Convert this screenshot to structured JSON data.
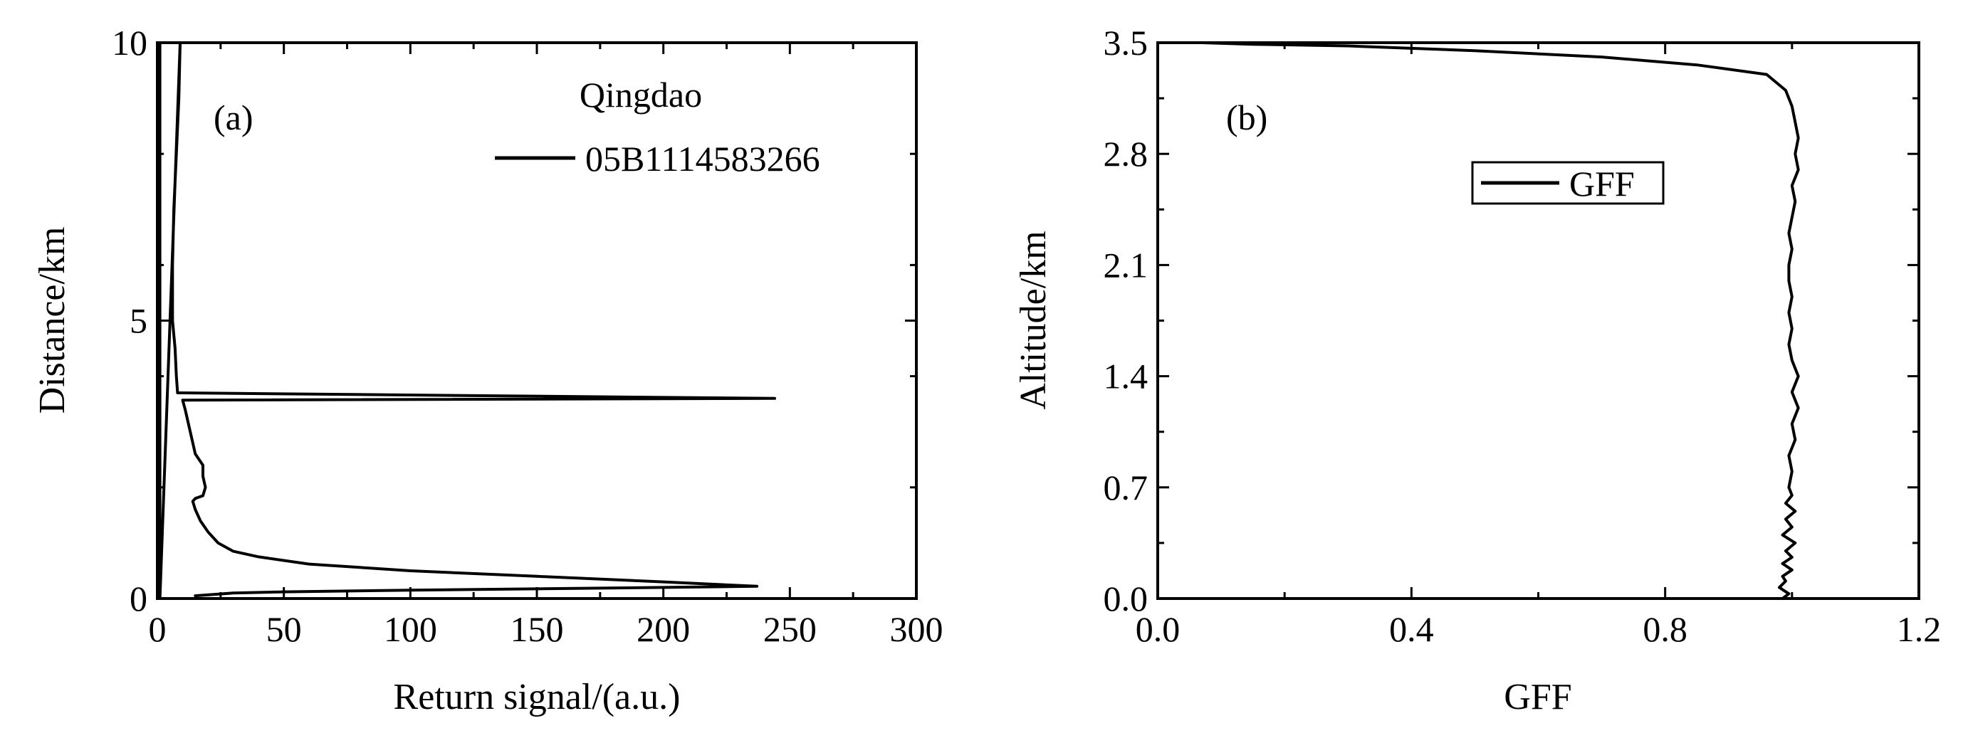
{
  "chart_data": [
    {
      "panel_label": "(a)",
      "type": "line",
      "xlabel": "Return signal/(a.u.)",
      "ylabel": "Distance/km",
      "xlim": [
        0,
        300
      ],
      "ylim": [
        0,
        10
      ],
      "xticks": [
        0,
        50,
        100,
        150,
        200,
        250,
        300
      ],
      "xtick_labels": [
        "0",
        "50",
        "100",
        "150",
        "200",
        "250",
        "300"
      ],
      "yticks": [
        0,
        5,
        10
      ],
      "ytick_labels": [
        "0",
        "5",
        "10"
      ],
      "y_minor_ticks": [
        2,
        4,
        6,
        8
      ],
      "grid": false,
      "legend": {
        "placement": "top-right",
        "title": "Qingdao",
        "entries": [
          "05B1114583266"
        ]
      },
      "series": [
        {
          "name": "05B1114583266",
          "color": "#000000",
          "points": [
            [
              1,
              10
            ],
            [
              1,
              0
            ],
            [
              9,
              10
            ],
            [
              8.5,
              9
            ],
            [
              7.5,
              8
            ],
            [
              6.5,
              7
            ],
            [
              6,
              6
            ],
            [
              6,
              5
            ],
            [
              7,
              4.5
            ],
            [
              7.5,
              4
            ],
            [
              8,
              3.7
            ],
            [
              244,
              3.6
            ],
            [
              10,
              3.57
            ],
            [
              11,
              3.4
            ],
            [
              13,
              3.0
            ],
            [
              15,
              2.6
            ],
            [
              18,
              2.4
            ],
            [
              18,
              2.2
            ],
            [
              19,
              2.0
            ],
            [
              18,
              1.85
            ],
            [
              15,
              1.8
            ],
            [
              14,
              1.75
            ],
            [
              15,
              1.6
            ],
            [
              17,
              1.4
            ],
            [
              20,
              1.2
            ],
            [
              24,
              1.0
            ],
            [
              30,
              0.85
            ],
            [
              40,
              0.75
            ],
            [
              60,
              0.62
            ],
            [
              100,
              0.5
            ],
            [
              150,
              0.4
            ],
            [
              200,
              0.3
            ],
            [
              237,
              0.22
            ],
            [
              200,
              0.2
            ],
            [
              100,
              0.15
            ],
            [
              50,
              0.12
            ],
            [
              30,
              0.1
            ],
            [
              15,
              0.05
            ]
          ]
        }
      ]
    },
    {
      "panel_label": "(b)",
      "type": "line",
      "xlabel": "GFF",
      "ylabel": "Altitude/km",
      "xlim": [
        0,
        1.2
      ],
      "ylim": [
        0,
        3.5
      ],
      "xticks": [
        0,
        0.4,
        0.8,
        1.2
      ],
      "xtick_labels": [
        "0.0",
        "0.4",
        "0.8",
        "1.2"
      ],
      "yticks": [
        0,
        0.7,
        1.4,
        2.1,
        2.8,
        3.5
      ],
      "ytick_labels": [
        "0.0",
        "0.7",
        "1.4",
        "2.1",
        "2.8",
        "3.5"
      ],
      "grid": false,
      "legend": {
        "placement": "upper-center",
        "entries": [
          "GFF"
        ]
      },
      "series": [
        {
          "name": "GFF",
          "color": "#000000",
          "points": [
            [
              0.985,
              0.0
            ],
            [
              0.995,
              0.03
            ],
            [
              0.98,
              0.07
            ],
            [
              0.99,
              0.11
            ],
            [
              0.985,
              0.14
            ],
            [
              1.0,
              0.18
            ],
            [
              0.985,
              0.22
            ],
            [
              1.0,
              0.26
            ],
            [
              0.99,
              0.3
            ],
            [
              1.005,
              0.35
            ],
            [
              0.985,
              0.4
            ],
            [
              1.0,
              0.45
            ],
            [
              0.99,
              0.5
            ],
            [
              1.005,
              0.55
            ],
            [
              0.99,
              0.6
            ],
            [
              1.0,
              0.65
            ],
            [
              0.995,
              0.7
            ],
            [
              1.0,
              0.8
            ],
            [
              0.995,
              0.9
            ],
            [
              1.005,
              1.0
            ],
            [
              1.0,
              1.1
            ],
            [
              1.01,
              1.2
            ],
            [
              1.0,
              1.3
            ],
            [
              1.01,
              1.4
            ],
            [
              1.0,
              1.5
            ],
            [
              0.995,
              1.6
            ],
            [
              1.0,
              1.7
            ],
            [
              0.995,
              1.8
            ],
            [
              1.0,
              1.9
            ],
            [
              0.995,
              2.0
            ],
            [
              0.995,
              2.1
            ],
            [
              1.0,
              2.2
            ],
            [
              0.995,
              2.3
            ],
            [
              1.0,
              2.4
            ],
            [
              1.005,
              2.5
            ],
            [
              1.0,
              2.6
            ],
            [
              1.01,
              2.7
            ],
            [
              1.005,
              2.8
            ],
            [
              1.01,
              2.9
            ],
            [
              1.005,
              3.0
            ],
            [
              1.0,
              3.1
            ],
            [
              0.99,
              3.2
            ],
            [
              0.96,
              3.3
            ],
            [
              0.85,
              3.36
            ],
            [
              0.7,
              3.41
            ],
            [
              0.5,
              3.45
            ],
            [
              0.3,
              3.48
            ],
            [
              0.15,
              3.49
            ],
            [
              0.07,
              3.5
            ]
          ]
        }
      ]
    }
  ]
}
